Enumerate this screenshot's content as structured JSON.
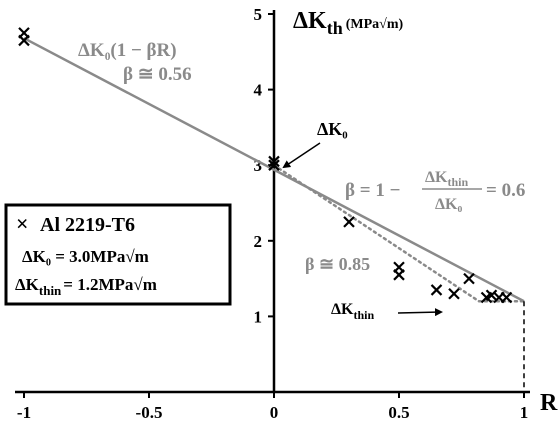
{
  "chart_data": {
    "type": "scatter",
    "title": "",
    "xlabel": "R",
    "ylabel": "ΔK_th (MPa√m)",
    "xlim": [
      -1,
      1
    ],
    "ylim": [
      0,
      5
    ],
    "x_ticks": [
      -1,
      -0.5,
      0,
      0.5,
      1
    ],
    "x_tick_labels": [
      "-1",
      "-0.5",
      "0",
      "0.5",
      "1"
    ],
    "y_ticks": [
      1,
      2,
      3,
      4,
      5
    ],
    "y_tick_labels": [
      "1",
      "2",
      "3",
      "4",
      "5"
    ],
    "grid": false,
    "legend_position": "middle-left",
    "colors": {
      "points": "#000000",
      "fit_line": "#8a8a8a",
      "dotted_line": "#8a8a8a",
      "dashed_line": "#000000",
      "axes": "#000000",
      "annotation_gray": "#8a8a8a"
    },
    "series": [
      {
        "name": "Al 2219-T6",
        "marker": "x",
        "x": [
          -1.0,
          -1.0,
          0.0,
          0.0,
          0.3,
          0.5,
          0.5,
          0.65,
          0.72,
          0.78,
          0.85,
          0.87,
          0.9,
          0.93
        ],
        "y": [
          4.75,
          4.65,
          3.05,
          3.0,
          2.25,
          1.65,
          1.55,
          1.35,
          1.3,
          1.5,
          1.25,
          1.28,
          1.25,
          1.25
        ]
      }
    ],
    "lines": [
      {
        "kind": "solid",
        "x": [
          -1,
          1
        ],
        "y": [
          4.68,
          1.2
        ]
      },
      {
        "kind": "dotted",
        "x": [
          0,
          0.82,
          1
        ],
        "y": [
          3.0,
          1.2,
          1.2
        ]
      },
      {
        "kind": "dashed",
        "x": [
          1,
          1
        ],
        "y": [
          1.2,
          0
        ]
      }
    ],
    "annotations": {
      "line_formula": "ΔK₀(1 − βR)",
      "beta_056": "β ≅ 0.56",
      "dk0": "ΔK₀",
      "beta_formula_prefix": "β = 1 −",
      "beta_formula_num": "ΔK",
      "beta_formula_num_sub": "thin",
      "beta_formula_den": "ΔK₀",
      "beta_formula_value": "= 0.6",
      "beta_085": "β ≅ 0.85",
      "dkthin_main": "ΔK",
      "dkthin_sub": "thin"
    },
    "legend": {
      "marker": "×",
      "title": "Al 2219-T6",
      "line1": "ΔK₀ = 3.0MPa√m",
      "line2_main": "ΔK",
      "line2_sub": "thin",
      "line2_rest": "= 1.2MPa√m"
    },
    "ylabel_parts": {
      "main": "ΔK",
      "sub": "th",
      "unit": "(MPa√m)"
    }
  }
}
